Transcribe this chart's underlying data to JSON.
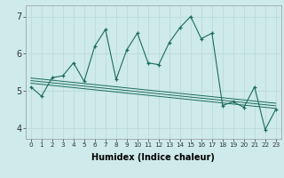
{
  "title": "",
  "xlabel": "Humidex (Indice chaleur)",
  "ylabel": "",
  "bg_color": "#ceeaea",
  "line_color": "#1c6b5e",
  "xlim": [
    -0.5,
    23.5
  ],
  "ylim": [
    3.7,
    7.3
  ],
  "xticks": [
    0,
    1,
    2,
    3,
    4,
    5,
    6,
    7,
    8,
    9,
    10,
    11,
    12,
    13,
    14,
    15,
    16,
    17,
    18,
    19,
    20,
    21,
    22,
    23
  ],
  "yticks": [
    4,
    5,
    6,
    7
  ],
  "main_line_x": [
    0,
    1,
    2,
    3,
    4,
    5,
    6,
    7,
    8,
    9,
    10,
    11,
    12,
    13,
    14,
    15,
    16,
    17,
    18,
    19,
    20,
    21,
    22,
    23
  ],
  "main_line_y": [
    5.1,
    4.85,
    5.35,
    5.4,
    5.75,
    5.25,
    6.2,
    6.65,
    5.3,
    6.1,
    6.55,
    5.75,
    5.7,
    6.3,
    6.7,
    7.0,
    6.4,
    6.55,
    4.6,
    4.7,
    4.55,
    5.1,
    3.95,
    4.5
  ],
  "reg_line1_x": [
    0,
    23
  ],
  "reg_line1_y": [
    5.2,
    4.52
  ],
  "reg_line2_x": [
    0,
    23
  ],
  "reg_line2_y": [
    5.27,
    4.59
  ],
  "reg_line3_x": [
    0,
    23
  ],
  "reg_line3_y": [
    5.34,
    4.66
  ],
  "grid_color": "#b8d8d8",
  "xlabel_fontsize": 7,
  "tick_fontsize_x": 5.2,
  "tick_fontsize_y": 7
}
